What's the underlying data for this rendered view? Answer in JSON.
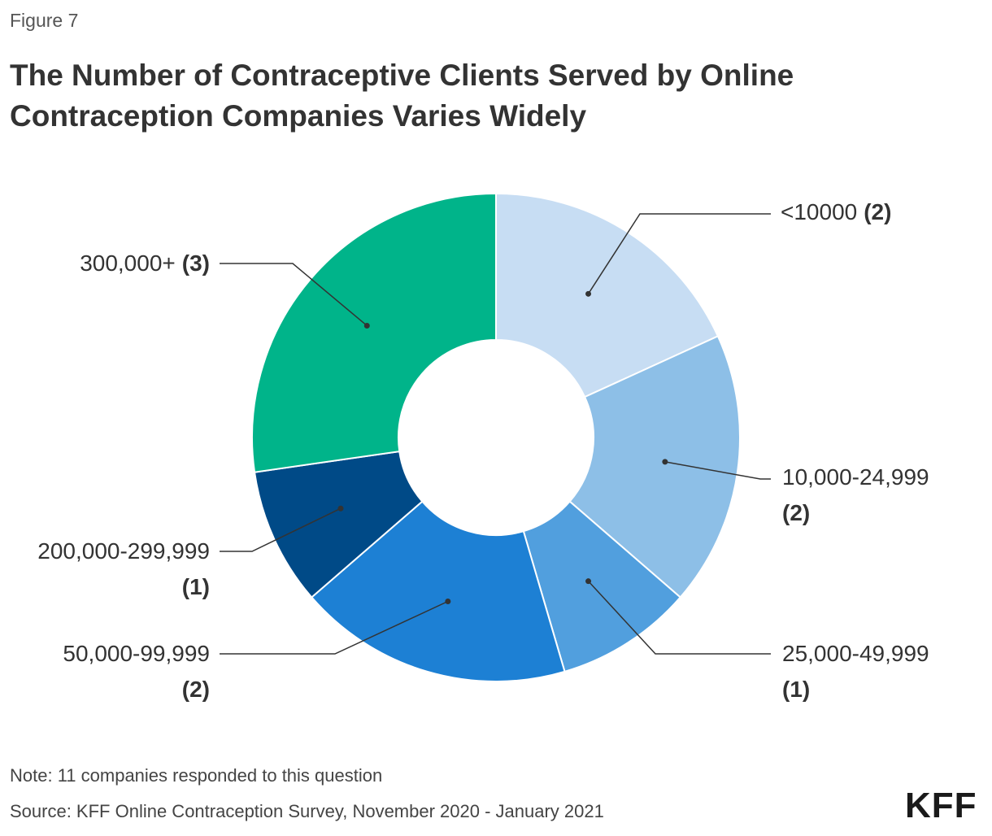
{
  "figure_label": "Figure 7",
  "title": "The Number of Contraceptive Clients Served by Online Contraception Companies Varies Widely",
  "note": "Note: 11 companies responded to this question",
  "source": "Source: KFF Online Contraception Survey, November 2020 - January 2021",
  "logo": "KFF",
  "chart_data": {
    "type": "pie",
    "donut": true,
    "legend": "none",
    "slices": [
      {
        "label": "<10000",
        "count": "(2)",
        "value": 2,
        "color": "#c7ddf3"
      },
      {
        "label": "10,000-24,999",
        "count": "(2)",
        "value": 2,
        "color": "#8dbfe7"
      },
      {
        "label": "25,000-49,999",
        "count": "(1)",
        "value": 1,
        "color": "#519fde"
      },
      {
        "label": "50,000-99,999",
        "count": "(2)",
        "value": 2,
        "color": "#1d80d4"
      },
      {
        "label": "200,000-299,999",
        "count": "(1)",
        "value": 1,
        "color": "#004a87"
      },
      {
        "label": "300,000+",
        "count": "(3)",
        "value": 3,
        "color": "#00b48a"
      }
    ]
  }
}
